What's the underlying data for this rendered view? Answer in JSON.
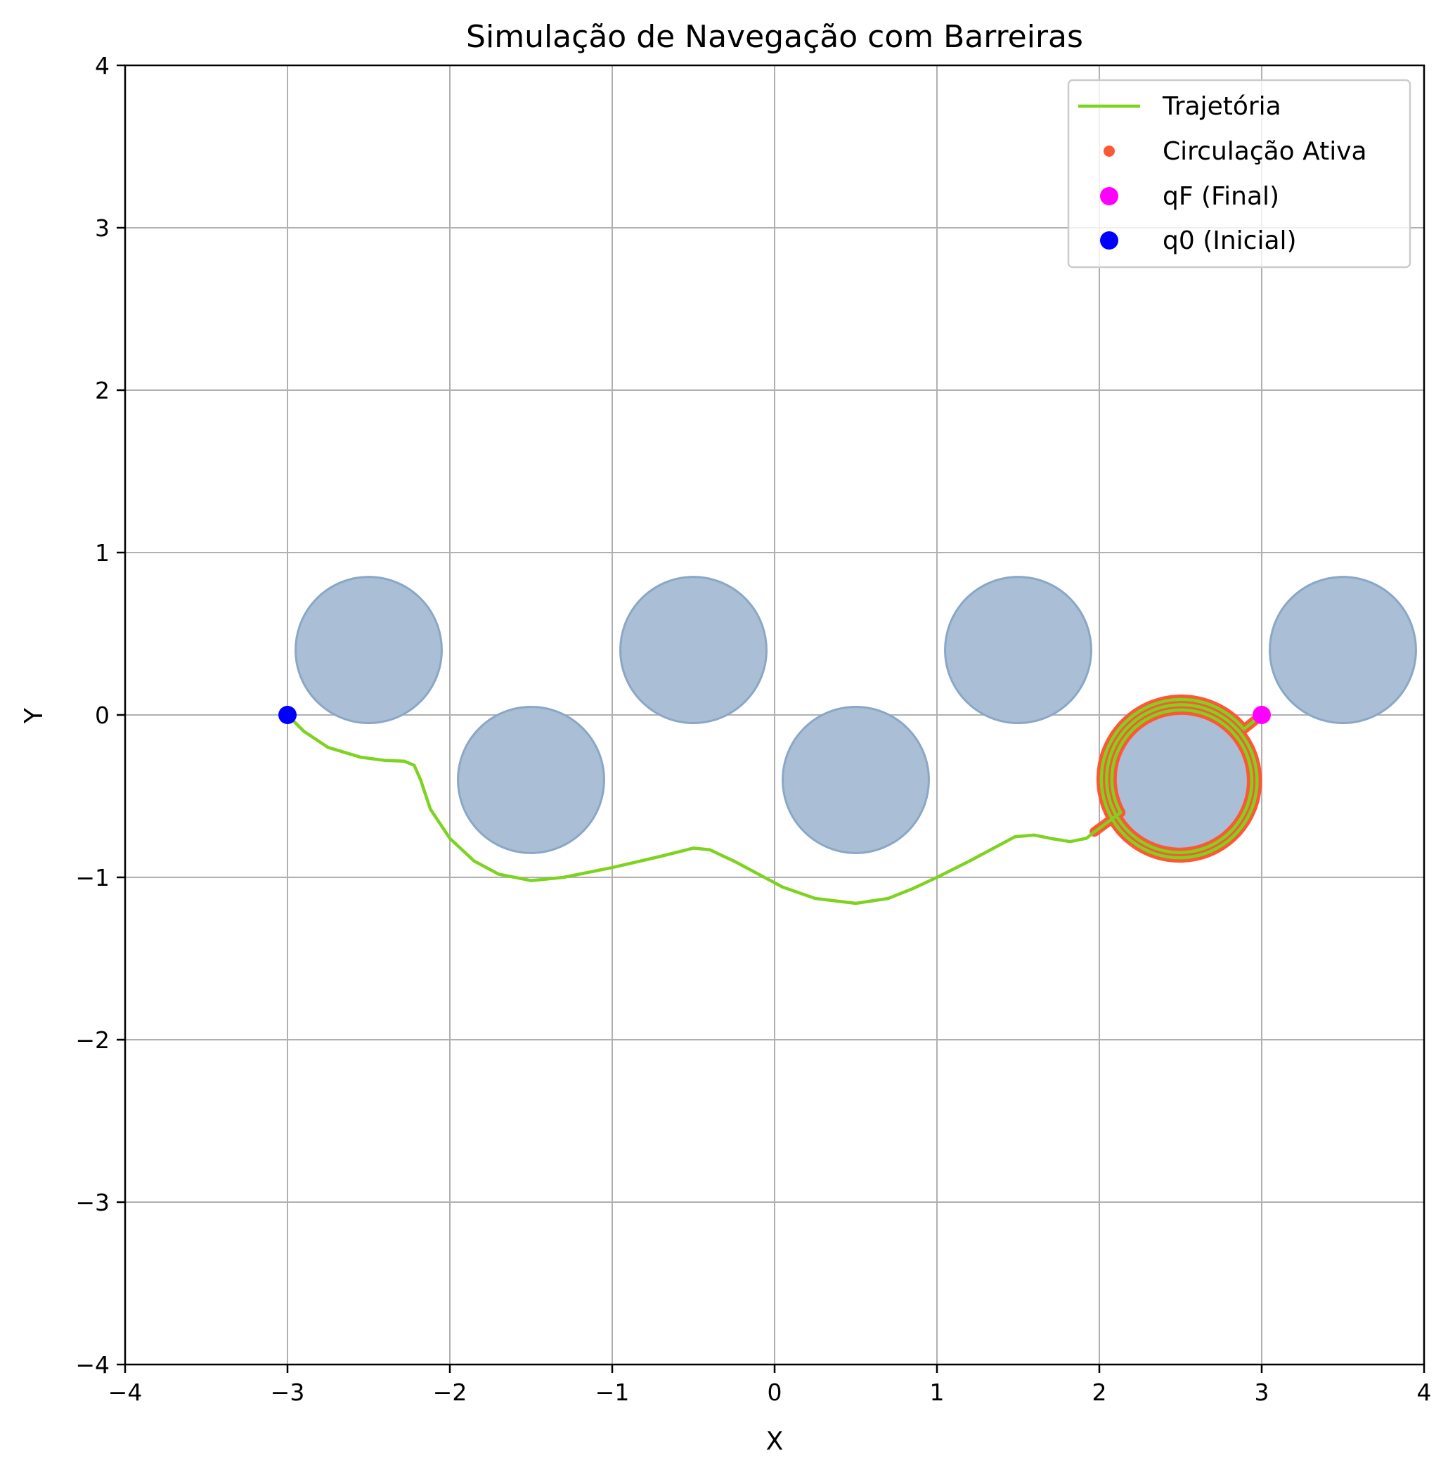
{
  "chart_data": {
    "type": "line",
    "title": "Simulação de Navegação com Barreiras",
    "xlabel": "X",
    "ylabel": "Y",
    "xlim": [
      -4,
      4
    ],
    "ylim": [
      -4,
      4
    ],
    "xticks": [
      -4,
      -3,
      -2,
      -1,
      0,
      1,
      2,
      3,
      4
    ],
    "yticks": [
      -4,
      -3,
      -2,
      -1,
      0,
      1,
      2,
      3,
      4
    ],
    "xtick_labels": [
      "−4",
      "−3",
      "−2",
      "−1",
      "0",
      "1",
      "2",
      "3",
      "4"
    ],
    "ytick_labels": [
      "−4",
      "−3",
      "−2",
      "−1",
      "0",
      "1",
      "2",
      "3",
      "4"
    ],
    "grid": true,
    "legend_position": "top-right",
    "obstacles": {
      "radius": 0.45,
      "color": "#aabfd6",
      "edge_color": "#8aa7c6",
      "centers": [
        [
          -2.5,
          0.4
        ],
        [
          -1.5,
          -0.4
        ],
        [
          -0.5,
          0.4
        ],
        [
          0.5,
          -0.4
        ],
        [
          1.5,
          0.4
        ],
        [
          2.5,
          -0.4
        ],
        [
          3.5,
          0.4
        ]
      ]
    },
    "series": [
      {
        "name": "Trajetória",
        "kind": "line",
        "color": "#7ed321",
        "points": [
          [
            -3.0,
            0.0
          ],
          [
            -2.9,
            -0.1
          ],
          [
            -2.75,
            -0.2
          ],
          [
            -2.55,
            -0.26
          ],
          [
            -2.4,
            -0.28
          ],
          [
            -2.28,
            -0.285
          ],
          [
            -2.22,
            -0.31
          ],
          [
            -2.18,
            -0.4
          ],
          [
            -2.12,
            -0.58
          ],
          [
            -2.0,
            -0.76
          ],
          [
            -1.85,
            -0.9
          ],
          [
            -1.7,
            -0.98
          ],
          [
            -1.5,
            -1.02
          ],
          [
            -1.3,
            -1.0
          ],
          [
            -1.0,
            -0.94
          ],
          [
            -0.7,
            -0.87
          ],
          [
            -0.5,
            -0.82
          ],
          [
            -0.4,
            -0.83
          ],
          [
            -0.25,
            -0.9
          ],
          [
            -0.1,
            -0.98
          ],
          [
            0.05,
            -1.06
          ],
          [
            0.25,
            -1.13
          ],
          [
            0.5,
            -1.16
          ],
          [
            0.7,
            -1.13
          ],
          [
            0.85,
            -1.07
          ],
          [
            1.0,
            -1.0
          ],
          [
            1.2,
            -0.9
          ],
          [
            1.35,
            -0.82
          ],
          [
            1.48,
            -0.75
          ],
          [
            1.6,
            -0.74
          ],
          [
            1.7,
            -0.76
          ],
          [
            1.82,
            -0.78
          ],
          [
            1.92,
            -0.76
          ],
          [
            1.97,
            -0.72
          ]
        ]
      },
      {
        "name": "Circulação Ativa",
        "kind": "scatter",
        "color": "#ff5733",
        "loop": {
          "center": [
            2.5,
            -0.4
          ],
          "radii": [
            0.42,
            0.46,
            0.5
          ],
          "start": [
            1.97,
            -0.72
          ],
          "end": [
            3.0,
            0.0
          ]
        }
      },
      {
        "name": "qF (Final)",
        "kind": "point",
        "color": "#ff00ff",
        "x": 3.0,
        "y": 0.0
      },
      {
        "name": "q0 (Inicial)",
        "kind": "point",
        "color": "#0000ff",
        "x": -3.0,
        "y": 0.0
      }
    ]
  },
  "legend": {
    "items": [
      {
        "label": "Trajetória",
        "color": "#7ed321"
      },
      {
        "label": "Circulação Ativa",
        "color": "#ff5733"
      },
      {
        "label": "qF (Final)",
        "color": "#ff00ff"
      },
      {
        "label": "q0 (Inicial)",
        "color": "#0000ff"
      }
    ]
  }
}
